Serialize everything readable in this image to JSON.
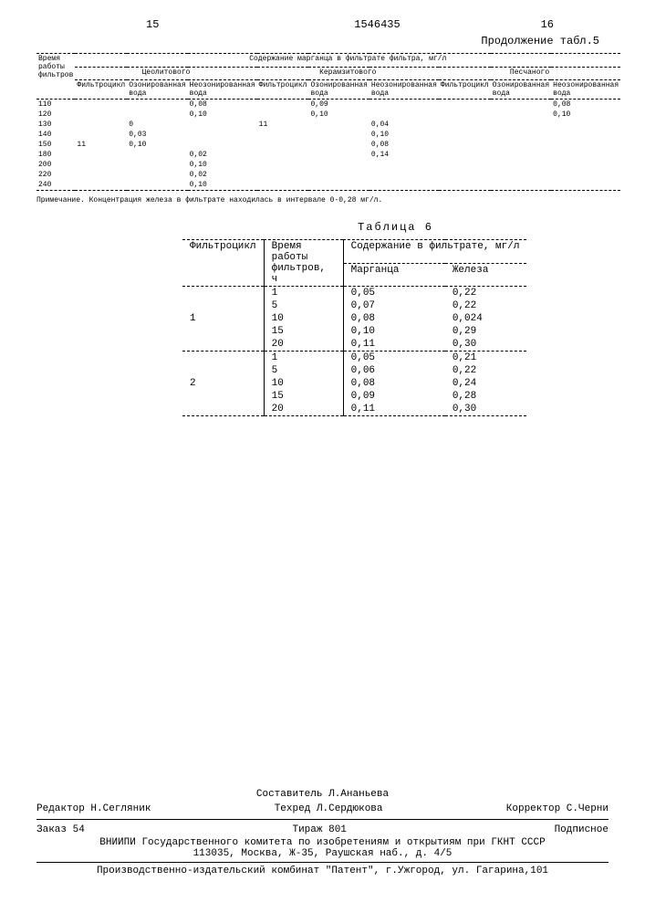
{
  "header": {
    "page_left": "15",
    "doc_num": "1546435",
    "page_right": "16"
  },
  "table5": {
    "continuation_label": "Продолжение табл.5",
    "col1": "Время работы фильтров",
    "spanning": "Содержание марганца в фильтрате фильтра, мг/л",
    "groups": [
      "Цеолитового",
      "Керамзитового",
      "Песчаного"
    ],
    "sub": [
      "Фильтроцикл",
      "Озонированная вода",
      "Неозонированная вода"
    ],
    "rows": [
      {
        "t": "110",
        "z": [
          "",
          "",
          "0,08"
        ],
        "k": [
          "",
          "0,09",
          ""
        ],
        "p": [
          "",
          "",
          "0,08"
        ]
      },
      {
        "t": "120",
        "z": [
          "",
          "",
          "0,10"
        ],
        "k": [
          "",
          "0,10",
          ""
        ],
        "p": [
          "",
          "",
          "0,10"
        ]
      },
      {
        "t": "130",
        "z": [
          "",
          "0",
          ""
        ],
        "k": [
          "11",
          "",
          "0,04"
        ],
        "p": [
          "",
          "",
          ""
        ]
      },
      {
        "t": "140",
        "z": [
          "",
          "0,03",
          ""
        ],
        "k": [
          "",
          "",
          "0,10"
        ],
        "p": [
          "",
          "",
          ""
        ]
      },
      {
        "t": "150",
        "z": [
          "11",
          "0,10",
          ""
        ],
        "k": [
          "",
          "",
          "0,08"
        ],
        "p": [
          "",
          "",
          ""
        ]
      },
      {
        "t": "180",
        "z": [
          "",
          "",
          "0,02"
        ],
        "k": [
          "",
          "",
          "0,14"
        ],
        "p": [
          "",
          "",
          ""
        ]
      },
      {
        "t": "200",
        "z": [
          "",
          "",
          "0,10"
        ],
        "k": [
          "",
          "",
          ""
        ],
        "p": [
          "",
          "",
          ""
        ]
      },
      {
        "t": "220",
        "z": [
          "",
          "",
          "0,02"
        ],
        "k": [
          "",
          "",
          ""
        ],
        "p": [
          "",
          "",
          ""
        ]
      },
      {
        "t": "240",
        "z": [
          "",
          "",
          "0,10"
        ],
        "k": [
          "",
          "",
          ""
        ],
        "p": [
          "",
          "",
          ""
        ]
      }
    ],
    "note": "Примечание. Концентрация железа в фильтрате находилась в интервале 0-0,28 мг/л."
  },
  "table6": {
    "label": "Таблица 6",
    "h1": "Фильтроцикл",
    "h2": "Время работы фильтров, ч",
    "h3": "Содержание в фильтрате, мг/л",
    "sub": [
      "Марганца",
      "Железа"
    ],
    "block1": {
      "cycle": "1",
      "rows": [
        [
          "1",
          "0,05",
          "0,22"
        ],
        [
          "5",
          "0,07",
          "0,22"
        ],
        [
          "10",
          "0,08",
          "0,024"
        ],
        [
          "15",
          "0,10",
          "0,29"
        ],
        [
          "20",
          "0,11",
          "0,30"
        ]
      ]
    },
    "block2": {
      "cycle": "2",
      "rows": [
        [
          "1",
          "0,05",
          "0,21"
        ],
        [
          "5",
          "0,06",
          "0,22"
        ],
        [
          "10",
          "0,08",
          "0,24"
        ],
        [
          "15",
          "0,09",
          "0,28"
        ],
        [
          "20",
          "0,11",
          "0,30"
        ]
      ]
    }
  },
  "footer": {
    "compiler": "Составитель Л.Ананьева",
    "editor": "Редактор Н.Сегляник",
    "techred": "Техред Л.Сердюкова",
    "corrector": "Корректор С.Черни",
    "order": "Заказ 54",
    "tirage": "Тираж 801",
    "sub_label": "Подписное",
    "org": "ВНИИПИ Государственного комитета по изобретениям и открытиям при ГКНТ СССР",
    "addr": "113035, Москва, Ж-35, Раушская наб., д. 4/5",
    "prod": "Производственно-издательский комбинат \"Патент\", г.Ужгород, ул. Гагарина,101"
  }
}
